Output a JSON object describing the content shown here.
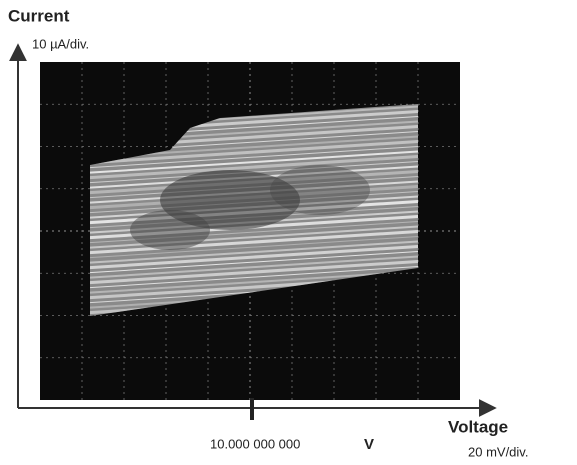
{
  "axes": {
    "y": {
      "label": "Current",
      "scale": "10 µA/div."
    },
    "x": {
      "label": "Voltage",
      "scale": "20 mV/div.",
      "marker_value": "10.000 000 000",
      "marker_unit": "V"
    }
  }
}
